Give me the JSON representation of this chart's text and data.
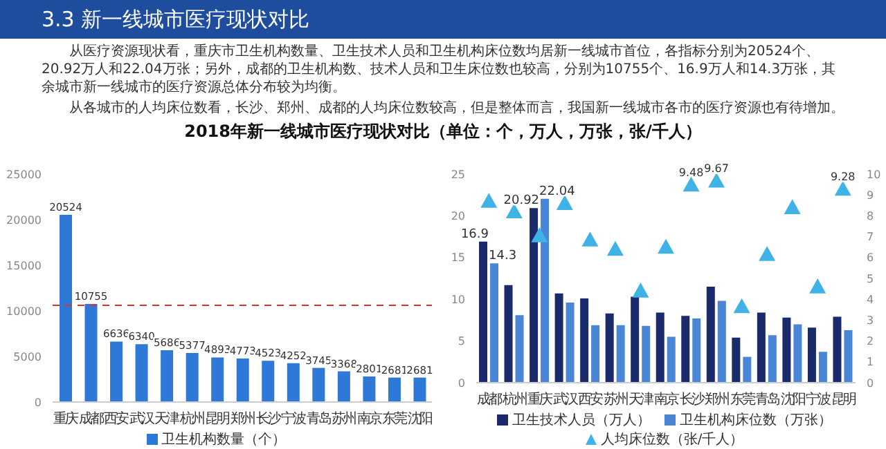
{
  "chart_data": [
    {
      "type": "bar",
      "title": "2018年新一线城市医疗现状对比（单位：个，万人，万张，张/千人）",
      "annotations": [
        "3.3 新一线城市医疗现状对比",
        "从医疗资源现状看，重庆市卫生机构数量、卫生技术人员和卫生机构床位数均居新一线城市首位，各指标分别为20524个、20.92万人和22.04万张；另外，成都的卫生机构数、技术人员和卫生床位数也较高，分别为10755个、16.9万人和14.3万张，其余城市新一线城市的医疗资源总体分布较为均衡。",
        "从各城市的人均床位数看，长沙、郑州、成都的人均床位数较高，但是整体而言，我国新一线城市各市的医疗资源也有待增加。"
      ],
      "categories": [
        "重庆",
        "成都",
        "西安",
        "武汉",
        "天津",
        "杭州",
        "昆明",
        "郑州",
        "长沙",
        "宁波",
        "青岛",
        "苏州",
        "南京",
        "东莞",
        "沈阳"
      ],
      "series": [
        {
          "name": "卫生机构数量（个）",
          "color": "#2e78d8",
          "values": [
            20524,
            10755,
            6636,
            6340,
            5686,
            5377,
            4893,
            4773,
            4523,
            4252,
            3745,
            3368,
            2801,
            2681,
            2681
          ]
        }
      ],
      "ylim": [
        0,
        25000
      ],
      "yticks": [
        0,
        5000,
        10000,
        15000,
        20000,
        25000
      ],
      "ref_lines": [
        {
          "axis": "y",
          "value": 10600,
          "color": "#d9342b",
          "line_style": "dashed"
        }
      ],
      "data_labels": true,
      "legend": "bottom"
    },
    {
      "type": "bar",
      "categories": [
        "成都",
        "杭州",
        "重庆",
        "武汉",
        "西安",
        "苏州",
        "天津",
        "南京",
        "长沙",
        "郑州",
        "东莞",
        "青岛",
        "沈阳",
        "宁波",
        "昆明"
      ],
      "series": [
        {
          "name": "卫生技术人员（万人）",
          "color": "#1b2a6b",
          "values": [
            16.9,
            11.7,
            20.92,
            10.7,
            10.1,
            8.3,
            10.3,
            8.4,
            8.0,
            11.5,
            5.4,
            8.4,
            7.8,
            6.6,
            7.9
          ],
          "value_labels": [
            "16.9",
            null,
            "20.92",
            null,
            null,
            null,
            null,
            null,
            null,
            null,
            null,
            null,
            null,
            null,
            null
          ]
        },
        {
          "name": "卫生机构床位数（万张）",
          "color": "#4a86d6",
          "values": [
            14.3,
            8.1,
            22.04,
            9.6,
            6.9,
            6.9,
            6.8,
            5.5,
            7.7,
            9.8,
            3.1,
            5.7,
            7.0,
            3.7,
            6.3
          ],
          "value_labels": [
            "14.3",
            null,
            "22.04",
            null,
            null,
            null,
            null,
            null,
            null,
            null,
            null,
            null,
            null,
            null,
            null
          ]
        },
        {
          "name": "人均床位数（张/千人）",
          "type": "scatter",
          "axis": "y2",
          "marker": "triangle",
          "color": "#3fb2e6",
          "values": [
            8.7,
            8.2,
            7.05,
            8.6,
            6.85,
            6.4,
            4.4,
            6.5,
            9.48,
            9.67,
            3.65,
            6.15,
            8.4,
            4.6,
            9.28
          ],
          "value_labels": [
            null,
            null,
            null,
            null,
            null,
            null,
            null,
            null,
            "9.48",
            "9.67",
            null,
            null,
            null,
            null,
            "9.28"
          ]
        }
      ],
      "ylim": [
        0,
        25
      ],
      "yticks": [
        0,
        5,
        10,
        15,
        20,
        25
      ],
      "y2lim": [
        0,
        10
      ],
      "y2ticks": [
        0,
        1,
        2,
        3,
        4,
        5,
        6,
        7,
        8,
        9,
        10
      ],
      "legend": "bottom"
    }
  ]
}
